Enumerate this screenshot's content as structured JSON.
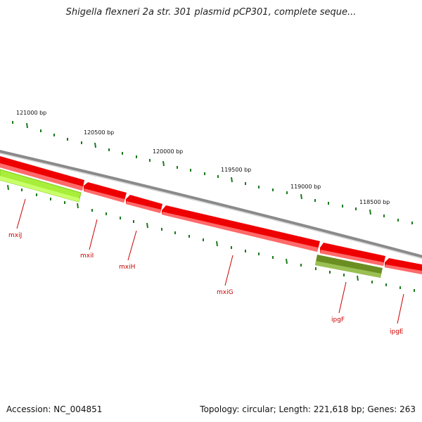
{
  "title": "Shigella flexneri 2a str. 301 plasmid pCP301, complete seque...",
  "footer": {
    "accession": "Accession: NC_004851",
    "summary": "Topology: circular; Length: 221,618 bp; Genes: 263"
  },
  "colors": {
    "backbone": "#888888",
    "gene_red": "#ee0000",
    "gene_light_green": "#a5ee33",
    "gene_dark_green": "#6b8e23",
    "tick_green": "#1a7a1a",
    "label_red": "#cc0000"
  },
  "ticks": {
    "labels": [
      "121000 bp",
      "120500 bp",
      "120000 bp",
      "119500 bp",
      "119000 bp",
      "118500 bp"
    ]
  },
  "genes": [
    {
      "name": "mxiJ",
      "color": "light_green"
    },
    {
      "name": "mxiI",
      "color": "red"
    },
    {
      "name": "mxiH",
      "color": "red"
    },
    {
      "name": "mxiG",
      "color": "red"
    },
    {
      "name": "ipgF",
      "color": "dark_green"
    },
    {
      "name": "ipgE",
      "color": "red"
    }
  ]
}
